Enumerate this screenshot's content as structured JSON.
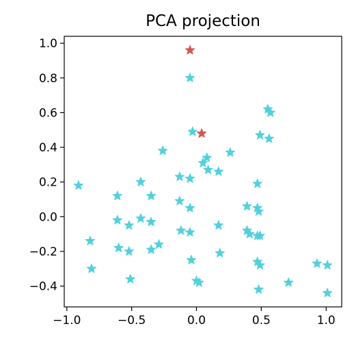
{
  "chart_data": {
    "type": "scatter",
    "title": "PCA projection",
    "xlabel": "",
    "ylabel": "",
    "xlim": [
      -1.02,
      1.12
    ],
    "ylim": [
      -0.52,
      1.04
    ],
    "grid": false,
    "x_ticks": [
      {
        "value": -1.0,
        "label": "−1.0"
      },
      {
        "value": -0.5,
        "label": "−0.5"
      },
      {
        "value": 0.0,
        "label": "0.0"
      },
      {
        "value": 0.5,
        "label": "0.5"
      },
      {
        "value": 1.0,
        "label": "1.0"
      }
    ],
    "y_ticks": [
      {
        "value": -0.4,
        "label": "−0.4"
      },
      {
        "value": -0.2,
        "label": "−0.2"
      },
      {
        "value": 0.0,
        "label": "0.0"
      },
      {
        "value": 0.2,
        "label": "0.2"
      },
      {
        "value": 0.4,
        "label": "0.4"
      },
      {
        "value": 0.6,
        "label": "0.6"
      },
      {
        "value": 0.8,
        "label": "0.8"
      },
      {
        "value": 1.0,
        "label": "1.0"
      }
    ],
    "series": [
      {
        "color": "#52d1dc",
        "marker": "star",
        "points": [
          [
            -0.91,
            0.18
          ],
          [
            -0.82,
            -0.14
          ],
          [
            -0.81,
            -0.3
          ],
          [
            -0.61,
            0.12
          ],
          [
            -0.61,
            -0.02
          ],
          [
            -0.6,
            -0.18
          ],
          [
            -0.52,
            -0.05
          ],
          [
            -0.52,
            -0.2
          ],
          [
            -0.51,
            -0.36
          ],
          [
            -0.43,
            0.2
          ],
          [
            -0.43,
            -0.01
          ],
          [
            -0.35,
            0.12
          ],
          [
            -0.35,
            -0.03
          ],
          [
            -0.35,
            -0.19
          ],
          [
            -0.29,
            -0.16
          ],
          [
            -0.26,
            0.38
          ],
          [
            -0.13,
            0.23
          ],
          [
            -0.13,
            0.09
          ],
          [
            -0.12,
            -0.08
          ],
          [
            -0.05,
            0.22
          ],
          [
            -0.05,
            0.05
          ],
          [
            -0.05,
            -0.09
          ],
          [
            -0.04,
            -0.25
          ],
          [
            -0.05,
            0.8
          ],
          [
            -0.03,
            0.49
          ],
          [
            0.0,
            -0.37
          ],
          [
            0.02,
            -0.38
          ],
          [
            0.05,
            0.31
          ],
          [
            0.08,
            0.34
          ],
          [
            0.09,
            0.27
          ],
          [
            0.17,
            0.26
          ],
          [
            0.17,
            -0.05
          ],
          [
            0.18,
            -0.21
          ],
          [
            0.26,
            0.37
          ],
          [
            0.39,
            0.06
          ],
          [
            0.39,
            -0.08
          ],
          [
            0.41,
            -0.1
          ],
          [
            0.47,
            0.05
          ],
          [
            0.47,
            0.19
          ],
          [
            0.48,
            0.03
          ],
          [
            0.47,
            -0.11
          ],
          [
            0.49,
            -0.11
          ],
          [
            0.47,
            -0.26
          ],
          [
            0.49,
            -0.28
          ],
          [
            0.48,
            -0.42
          ],
          [
            0.49,
            0.47
          ],
          [
            0.55,
            0.62
          ],
          [
            0.57,
            0.6
          ],
          [
            0.56,
            0.45
          ],
          [
            0.71,
            -0.38
          ],
          [
            0.93,
            -0.27
          ],
          [
            1.01,
            -0.28
          ],
          [
            1.01,
            -0.44
          ]
        ]
      },
      {
        "color": "#d4574f",
        "marker": "star",
        "points": [
          [
            -0.05,
            0.96
          ],
          [
            0.04,
            0.48
          ]
        ]
      }
    ]
  }
}
